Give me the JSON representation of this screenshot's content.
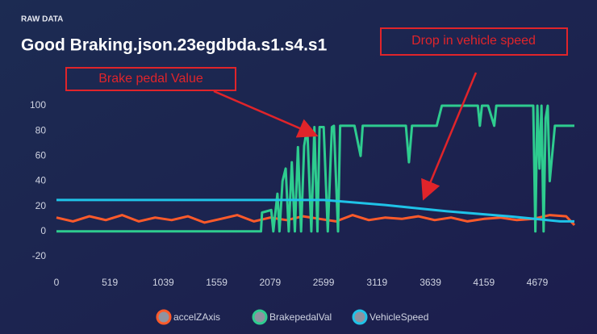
{
  "section_label": "RAW DATA",
  "annotations": [
    "Drop in vehicle speed",
    "Brake pedal Value"
  ],
  "chart_data": {
    "type": "line",
    "title": "Good Braking.json.23egdbda.s1.s4.s1",
    "xlim": [
      0,
      5040
    ],
    "xticks": [
      0,
      519,
      1039,
      1559,
      2079,
      2599,
      3119,
      3639,
      4159,
      4679
    ],
    "ylim": [
      -20,
      100
    ],
    "yticks": [
      -20,
      0,
      20,
      40,
      60,
      80,
      100
    ],
    "legend": "bottom",
    "series": [
      {
        "name": "accelZAxis",
        "color": "#ff5a2a",
        "x": [
          0,
          160,
          320,
          480,
          640,
          800,
          960,
          1120,
          1280,
          1440,
          1600,
          1760,
          1920,
          2080,
          2240,
          2400,
          2560,
          2720,
          2880,
          3040,
          3200,
          3360,
          3520,
          3680,
          3840,
          4000,
          4160,
          4320,
          4480,
          4640,
          4800,
          4960,
          5040
        ],
        "values": [
          11,
          8,
          12,
          9,
          13,
          8,
          11,
          9,
          12,
          7,
          10,
          13,
          8,
          11,
          9,
          12,
          10,
          8,
          13,
          9,
          11,
          10,
          12,
          9,
          11,
          8,
          10,
          11,
          9,
          10,
          13,
          12,
          5
        ]
      },
      {
        "name": "BrakepedalVal",
        "color": "#2ecc8f",
        "x": [
          0,
          1990,
          2000,
          2090,
          2110,
          2150,
          2170,
          2200,
          2230,
          2260,
          2290,
          2320,
          2350,
          2380,
          2410,
          2440,
          2480,
          2510,
          2540,
          2560,
          2600,
          2640,
          2680,
          2700,
          2740,
          2760,
          2800,
          2900,
          2960,
          2980,
          3000,
          3400,
          3430,
          3460,
          3700,
          3750,
          4100,
          4120,
          4140,
          4200,
          4260,
          4280,
          4300,
          4640,
          4660,
          4680,
          4700,
          4720,
          4740,
          4760,
          4780,
          4800,
          4850,
          5040
        ],
        "values": [
          0,
          0,
          15,
          17,
          0,
          30,
          0,
          40,
          50,
          0,
          55,
          0,
          67,
          0,
          68,
          83,
          0,
          83,
          0,
          83,
          83,
          0,
          83,
          84,
          0,
          84,
          84,
          84,
          60,
          84,
          84,
          84,
          55,
          84,
          84,
          100,
          100,
          84,
          100,
          100,
          84,
          100,
          100,
          100,
          0,
          100,
          50,
          100,
          0,
          90,
          100,
          40,
          84,
          84
        ]
      },
      {
        "name": "VehicleSpeed",
        "color": "#1fc3e8",
        "x": [
          0,
          2600,
          3200,
          3800,
          4400,
          4900,
          5040
        ],
        "values": [
          25,
          25,
          21,
          16,
          12,
          8,
          8
        ]
      }
    ]
  }
}
